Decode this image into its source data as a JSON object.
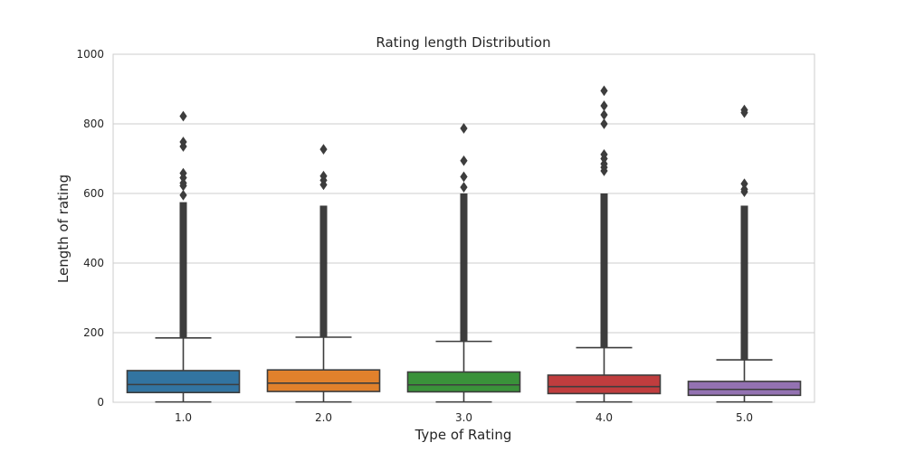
{
  "chart_data": {
    "type": "box",
    "title": "Rating length Distribution",
    "xlabel": "Type of Rating",
    "ylabel": "Length of rating",
    "ylim": [
      0,
      1000
    ],
    "yticks": [
      0,
      200,
      400,
      600,
      800,
      1000
    ],
    "grid": true,
    "categories": [
      "1.0",
      "2.0",
      "3.0",
      "4.0",
      "5.0"
    ],
    "colors": [
      "#3274a1",
      "#e1812c",
      "#3a923a",
      "#c03d3e",
      "#9372b2"
    ],
    "boxes": [
      {
        "category": "1.0",
        "min": 1,
        "q1": 28,
        "median": 51,
        "q3": 91,
        "whisker_high": 185,
        "dense_outliers_to": 575,
        "sparse_outliers": [
          595,
          622,
          630,
          645,
          658,
          735,
          748,
          822
        ]
      },
      {
        "category": "2.0",
        "min": 1,
        "q1": 31,
        "median": 55,
        "q3": 93,
        "whisker_high": 187,
        "dense_outliers_to": 565,
        "sparse_outliers": [
          625,
          638,
          650,
          727
        ]
      },
      {
        "category": "3.0",
        "min": 1,
        "q1": 30,
        "median": 50,
        "q3": 87,
        "whisker_high": 175,
        "dense_outliers_to": 600,
        "sparse_outliers": [
          618,
          648,
          694,
          787
        ]
      },
      {
        "category": "4.0",
        "min": 1,
        "q1": 25,
        "median": 45,
        "q3": 78,
        "whisker_high": 157,
        "dense_outliers_to": 600,
        "sparse_outliers": [
          665,
          675,
          685,
          700,
          712,
          800,
          826,
          852,
          895
        ]
      },
      {
        "category": "5.0",
        "min": 1,
        "q1": 20,
        "median": 37,
        "q3": 60,
        "whisker_high": 122,
        "dense_outliers_to": 565,
        "sparse_outliers": [
          605,
          612,
          628,
          832,
          840
        ]
      }
    ]
  }
}
